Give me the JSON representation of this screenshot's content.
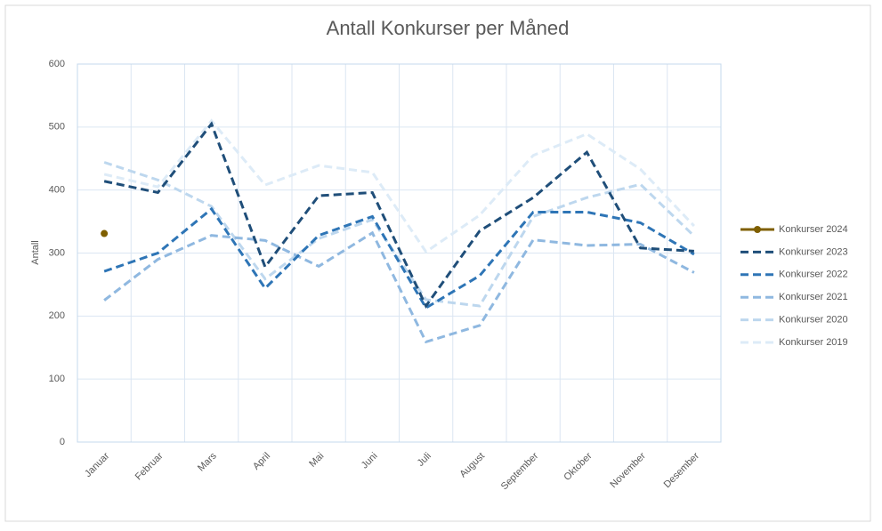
{
  "chart_data": {
    "type": "line",
    "title": "Antall Konkurser per Måned",
    "y_label": "Antall",
    "categories": [
      "Januar",
      "Februar",
      "Mars",
      "April",
      "Mai",
      "Juni",
      "Juli",
      "August",
      "September",
      "Oktober",
      "November",
      "Desember"
    ],
    "series": [
      {
        "name": "Konkurser 2024",
        "color": "#7f5f00",
        "dashed": false,
        "marker": true,
        "values": [
          331,
          null,
          null,
          null,
          null,
          null,
          null,
          null,
          null,
          null,
          null,
          null
        ]
      },
      {
        "name": "Konkurser 2023",
        "color": "#1f4e79",
        "dashed": true,
        "marker": false,
        "values": [
          414,
          396,
          505,
          278,
          391,
          396,
          216,
          335,
          388,
          460,
          308,
          303
        ]
      },
      {
        "name": "Konkurser 2022",
        "color": "#2e75b6",
        "dashed": true,
        "marker": false,
        "values": [
          271,
          300,
          370,
          244,
          328,
          358,
          213,
          264,
          365,
          365,
          348,
          298
        ]
      },
      {
        "name": "Konkurser 2021",
        "color": "#8fb8e0",
        "dashed": true,
        "marker": false,
        "values": [
          225,
          290,
          328,
          320,
          279,
          332,
          159,
          185,
          321,
          312,
          314,
          269
        ]
      },
      {
        "name": "Konkurser 2020",
        "color": "#bdd7ee",
        "dashed": true,
        "marker": false,
        "values": [
          444,
          416,
          374,
          259,
          323,
          353,
          226,
          216,
          358,
          388,
          409,
          327
        ]
      },
      {
        "name": "Konkurser 2019",
        "color": "#ddebf7",
        "dashed": true,
        "marker": false,
        "values": [
          425,
          405,
          510,
          408,
          439,
          428,
          302,
          360,
          455,
          489,
          433,
          343
        ]
      }
    ],
    "ylim": [
      0,
      600
    ],
    "yticks": [
      0,
      100,
      200,
      300,
      400,
      500,
      600
    ],
    "grid": true,
    "legend": "right"
  }
}
